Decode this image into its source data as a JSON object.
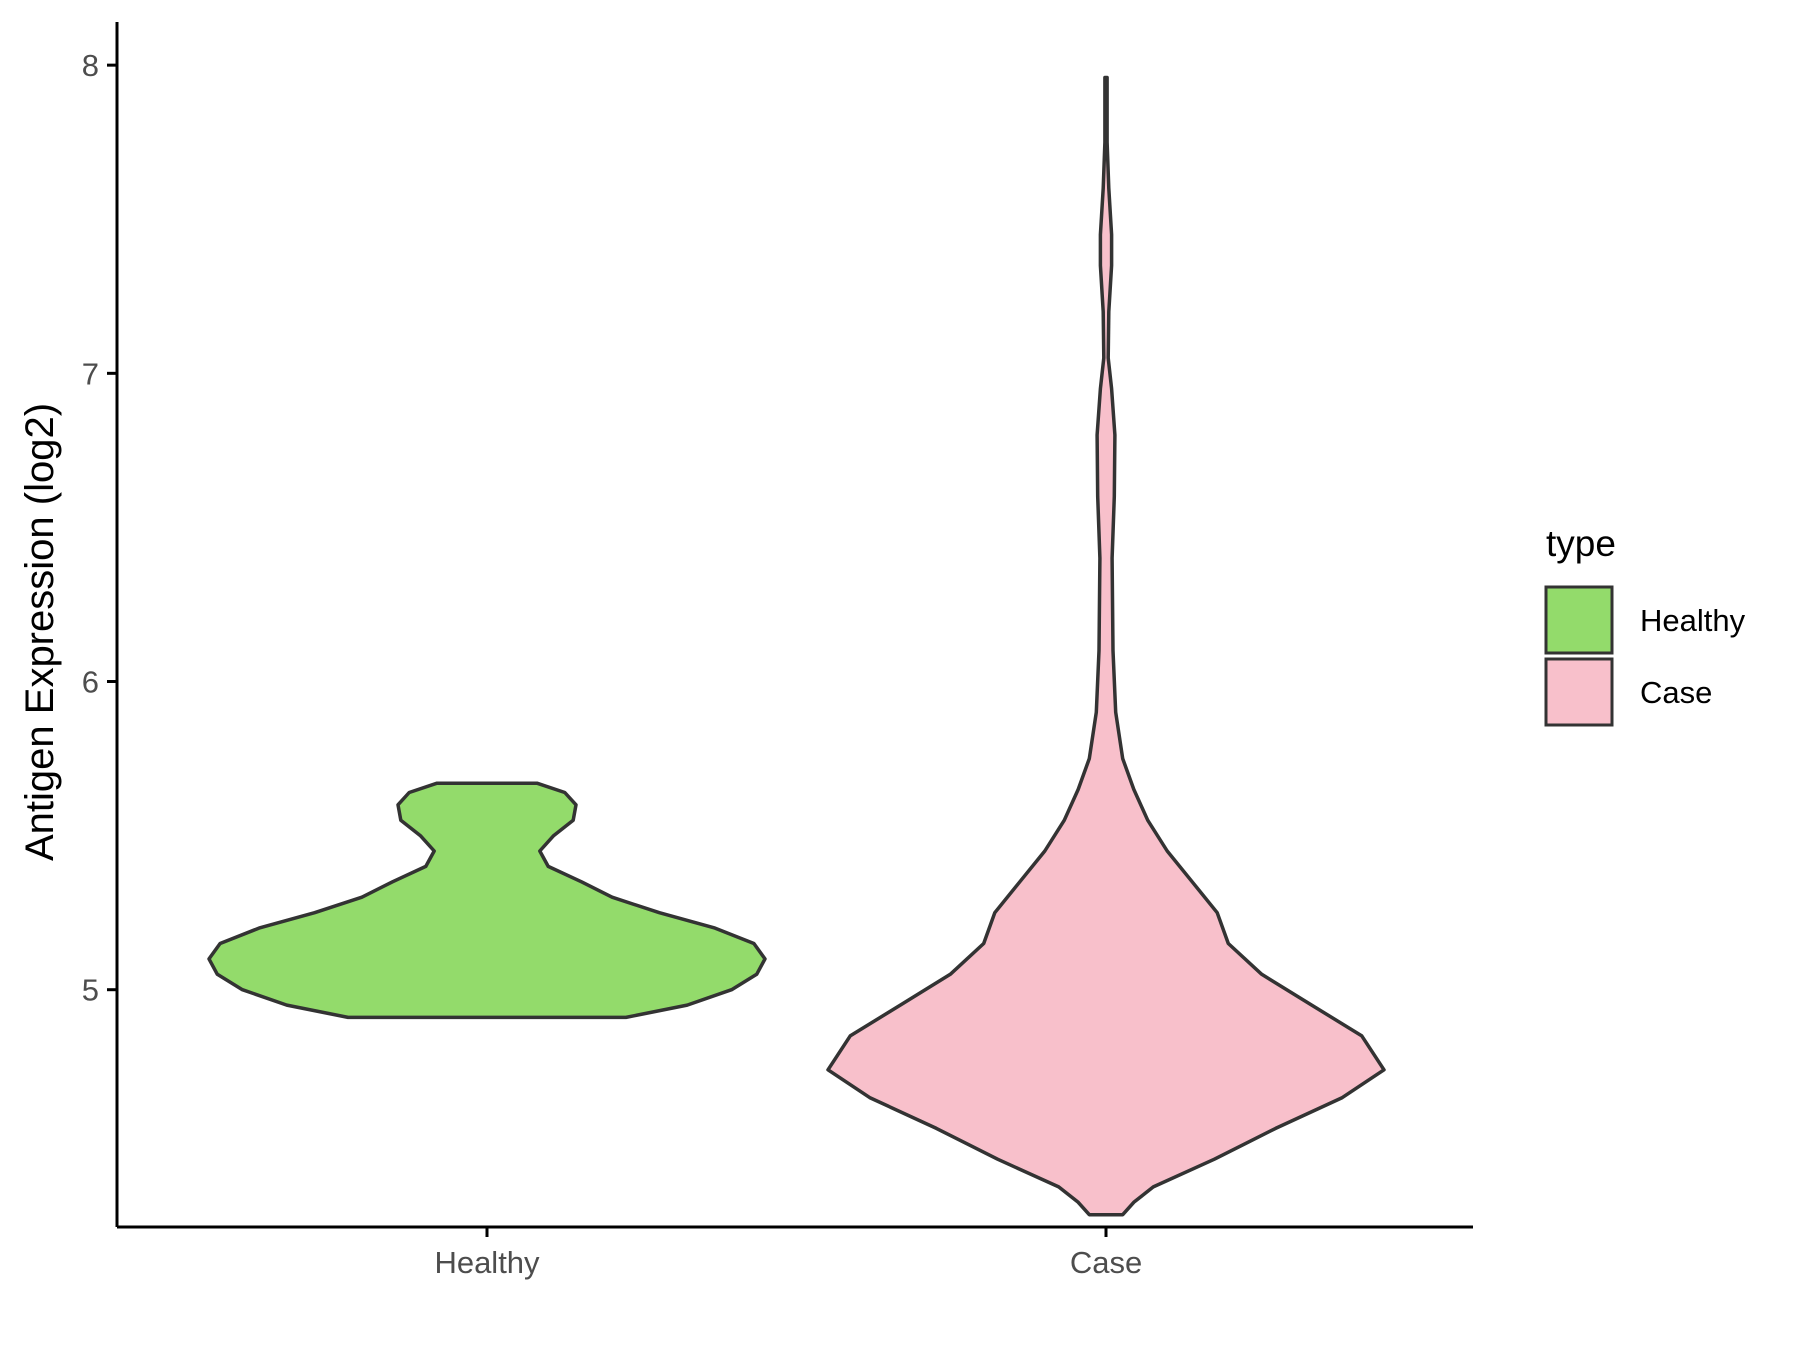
{
  "chart_data": {
    "type": "violin",
    "title": "",
    "xlabel": "",
    "ylabel": "Antigen Expression (log2)",
    "categories": [
      "Healthy",
      "Case"
    ],
    "y_ticks": [
      5,
      6,
      7,
      8
    ],
    "ylim": [
      4.23,
      8.14
    ],
    "grid": false,
    "legend": {
      "title": "type",
      "position": "right",
      "entries": [
        {
          "label": "Healthy",
          "color": "#93DB6B"
        },
        {
          "label": "Case",
          "color": "#F8C0CB"
        }
      ]
    },
    "series": [
      {
        "category": "Healthy",
        "color": "#93DB6B",
        "y_min": 4.91,
        "y_max": 5.67,
        "density": [
          [
            4.91,
            0.5
          ],
          [
            4.95,
            0.72
          ],
          [
            5.0,
            0.88
          ],
          [
            5.05,
            0.97
          ],
          [
            5.1,
            1.0
          ],
          [
            5.15,
            0.96
          ],
          [
            5.2,
            0.82
          ],
          [
            5.25,
            0.62
          ],
          [
            5.3,
            0.45
          ],
          [
            5.35,
            0.34
          ],
          [
            5.4,
            0.22
          ],
          [
            5.45,
            0.19
          ],
          [
            5.5,
            0.24
          ],
          [
            5.55,
            0.31
          ],
          [
            5.6,
            0.32
          ],
          [
            5.64,
            0.28
          ],
          [
            5.67,
            0.18
          ]
        ]
      },
      {
        "category": "Case",
        "color": "#F8C0CB",
        "y_min": 4.27,
        "y_max": 7.96,
        "density": [
          [
            4.27,
            0.06
          ],
          [
            4.31,
            0.1
          ],
          [
            4.36,
            0.17
          ],
          [
            4.45,
            0.39
          ],
          [
            4.55,
            0.61
          ],
          [
            4.65,
            0.85
          ],
          [
            4.74,
            1.0
          ],
          [
            4.85,
            0.92
          ],
          [
            4.95,
            0.74
          ],
          [
            5.05,
            0.56
          ],
          [
            5.15,
            0.44
          ],
          [
            5.25,
            0.4
          ],
          [
            5.35,
            0.31
          ],
          [
            5.45,
            0.22
          ],
          [
            5.55,
            0.15
          ],
          [
            5.65,
            0.1
          ],
          [
            5.75,
            0.06
          ],
          [
            5.9,
            0.035
          ],
          [
            6.1,
            0.025
          ],
          [
            6.4,
            0.022
          ],
          [
            6.6,
            0.03
          ],
          [
            6.8,
            0.032
          ],
          [
            6.95,
            0.02
          ],
          [
            7.05,
            0.008
          ],
          [
            7.2,
            0.01
          ],
          [
            7.35,
            0.02
          ],
          [
            7.45,
            0.02
          ],
          [
            7.6,
            0.01
          ],
          [
            7.75,
            0.004
          ],
          [
            7.96,
            0.004
          ]
        ]
      }
    ]
  }
}
